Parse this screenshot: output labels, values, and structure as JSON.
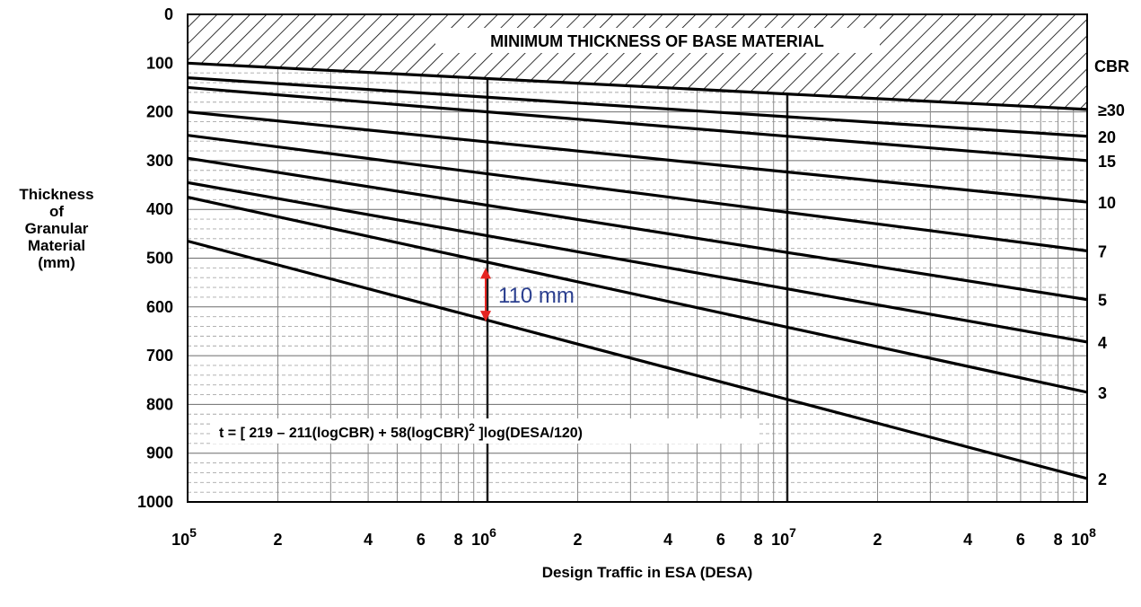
{
  "chart_data": {
    "type": "line",
    "title": "MINIMUM THICKNESS OF BASE MATERIAL",
    "xlabel": "Design Traffic in ESA (DESA)",
    "ylabel_lines": [
      "Thickness",
      "of",
      "Granular",
      "Material",
      "(mm)"
    ],
    "x_scale": "log",
    "xlim": [
      100000,
      100000000
    ],
    "ylim": [
      1000,
      0
    ],
    "y_inverted": true,
    "grid": true,
    "y_ticks": [
      "0",
      "100",
      "200",
      "300",
      "400",
      "500",
      "600",
      "700",
      "800",
      "900",
      "1000"
    ],
    "x_ticks": [
      {
        "value": 100000,
        "label": "10",
        "sup": "5"
      },
      {
        "value": 200000,
        "label": "2"
      },
      {
        "value": 400000,
        "label": "4"
      },
      {
        "value": 600000,
        "label": "6"
      },
      {
        "value": 800000,
        "label": "8"
      },
      {
        "value": 1000000,
        "label": "10",
        "sup": "6"
      },
      {
        "value": 2000000,
        "label": "2"
      },
      {
        "value": 4000000,
        "label": "4"
      },
      {
        "value": 6000000,
        "label": "6"
      },
      {
        "value": 8000000,
        "label": "8"
      },
      {
        "value": 10000000,
        "label": "10",
        "sup": "7"
      },
      {
        "value": 20000000,
        "label": "2"
      },
      {
        "value": 40000000,
        "label": "4"
      },
      {
        "value": 60000000,
        "label": "6"
      },
      {
        "value": 80000000,
        "label": "8"
      },
      {
        "value": 100000000,
        "label": "10",
        "sup": "8"
      }
    ],
    "series_header": "CBR",
    "series": [
      {
        "name": "≥30",
        "x": [
          100000,
          100000000
        ],
        "y": [
          100,
          195
        ]
      },
      {
        "name": "20",
        "x": [
          100000,
          100000000
        ],
        "y": [
          130,
          250
        ]
      },
      {
        "name": "15",
        "x": [
          100000,
          100000000
        ],
        "y": [
          150,
          300
        ]
      },
      {
        "name": "10",
        "x": [
          100000,
          100000000
        ],
        "y": [
          200,
          385
        ]
      },
      {
        "name": "7",
        "x": [
          100000,
          100000000
        ],
        "y": [
          248,
          485
        ]
      },
      {
        "name": "5",
        "x": [
          100000,
          100000000
        ],
        "y": [
          295,
          585
        ]
      },
      {
        "name": "4",
        "x": [
          100000,
          100000000
        ],
        "y": [
          345,
          672
        ]
      },
      {
        "name": "3",
        "x": [
          100000,
          100000000
        ],
        "y": [
          375,
          775
        ]
      },
      {
        "name": "2",
        "x": [
          100000,
          100000000
        ],
        "y": [
          465,
          952
        ]
      }
    ],
    "hatched_region_boundary": {
      "x": [
        100000,
        100000000
      ],
      "y": [
        100,
        195
      ]
    },
    "reference_lines_x": [
      1000000,
      10000000
    ],
    "annotation": {
      "text": "110 mm",
      "x": 1000000,
      "y_top": 520,
      "y_bottom": 630,
      "color": "#e52521",
      "text_color": "#2b3f8f"
    },
    "formula": {
      "main": "t = [ 219 – 211(logCBR) + 58(logCBR)",
      "sup": "2",
      "tail": " ]log(DESA/120)"
    }
  }
}
